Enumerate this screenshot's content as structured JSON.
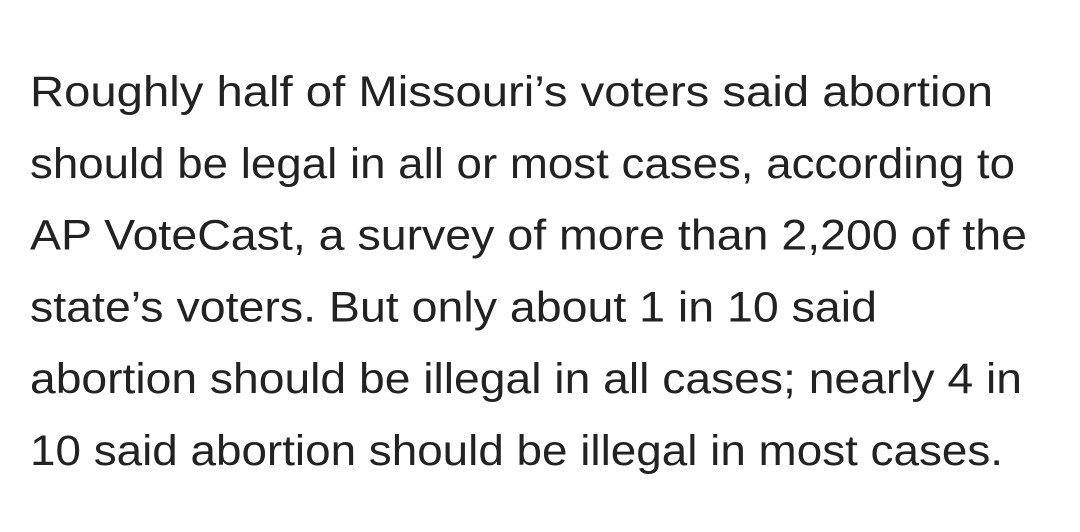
{
  "paragraph": {
    "lines": [
      "Roughly half of Missouri’s voters said abortion",
      "should be legal in all or most cases, according to",
      "AP VoteCast, a survey of more than 2,200 of the",
      "state’s voters. But only about 1 in 10 said",
      "abortion should be illegal in all cases; nearly 4 in",
      "10 said abortion should be illegal in most cases."
    ]
  }
}
